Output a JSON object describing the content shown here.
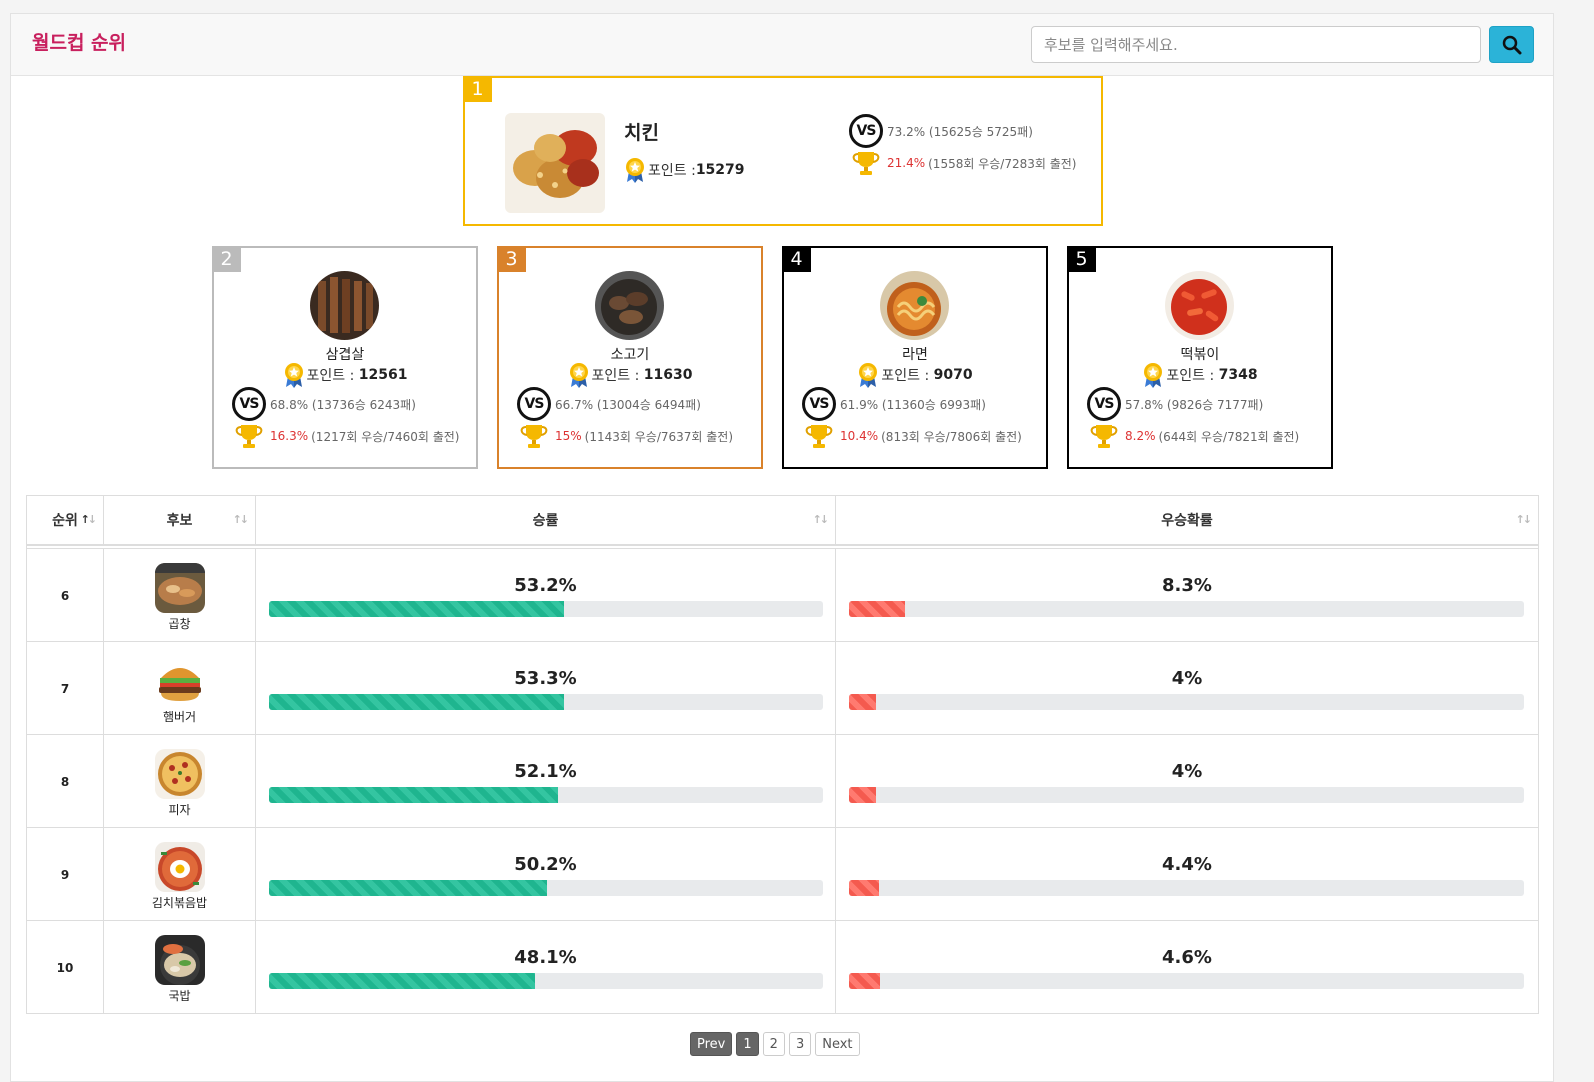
{
  "header": {
    "title": "월드컵 순위",
    "search_placeholder": "후보를 입력해주세요."
  },
  "top1": {
    "rank": "1",
    "name": "치킨",
    "points_label": "포인트 :",
    "points": "15279",
    "win_rate": "73.2% (15625승 5725패)",
    "win_pct": "21.4%",
    "win_detail": "(1558회 우승/7283회 출전)"
  },
  "top_cards": [
    {
      "rank": "2",
      "name": "삼겹살",
      "points_label": "포인트 :",
      "points": "12561",
      "win_rate": "68.8% (13736승 6243패)",
      "win_pct": "16.3%",
      "win_detail": "(1217회 우승/7460회 출전)",
      "border": "#bbbbbb",
      "badge": "#bbbbbb"
    },
    {
      "rank": "3",
      "name": "소고기",
      "points_label": "포인트 :",
      "points": "11630",
      "win_rate": "66.7% (13004승 6494패)",
      "win_pct": "15%",
      "win_detail": "(1143회 우승/7637회 출전)",
      "border": "#d9822b",
      "badge": "#d9822b"
    },
    {
      "rank": "4",
      "name": "라면",
      "points_label": "포인트 :",
      "points": "9070",
      "win_rate": "61.9% (11360승 6993패)",
      "win_pct": "10.4%",
      "win_detail": "(813회 우승/7806회 출전)",
      "border": "#000000",
      "badge": "#000000"
    },
    {
      "rank": "5",
      "name": "떡볶이",
      "points_label": "포인트 :",
      "points": "7348",
      "win_rate": "57.8% (9826승 7177패)",
      "win_pct": "8.2%",
      "win_detail": "(644회 우승/7821회 출전)",
      "border": "#000000",
      "badge": "#000000"
    }
  ],
  "table": {
    "headers": {
      "rank": "순위",
      "candidate": "후보",
      "win_rate": "승률",
      "win_prob": "우승확률"
    },
    "rows": [
      {
        "rank": "6",
        "name": "곱창",
        "win_rate": "53.2%",
        "win_rate_value": 53.2,
        "win_prob": "8.3%",
        "win_prob_value": 8.3
      },
      {
        "rank": "7",
        "name": "햄버거",
        "win_rate": "53.3%",
        "win_rate_value": 53.3,
        "win_prob": "4%",
        "win_prob_value": 4
      },
      {
        "rank": "8",
        "name": "피자",
        "win_rate": "52.1%",
        "win_rate_value": 52.1,
        "win_prob": "4%",
        "win_prob_value": 4
      },
      {
        "rank": "9",
        "name": "김치볶음밥",
        "win_rate": "50.2%",
        "win_rate_value": 50.2,
        "win_prob": "4.4%",
        "win_prob_value": 4.4
      },
      {
        "rank": "10",
        "name": "국밥",
        "win_rate": "48.1%",
        "win_rate_value": 48.1,
        "win_prob": "4.6%",
        "win_prob_value": 4.6
      }
    ]
  },
  "pagination": {
    "prev": "Prev",
    "pages": [
      "1",
      "2",
      "3"
    ],
    "next": "Next"
  }
}
